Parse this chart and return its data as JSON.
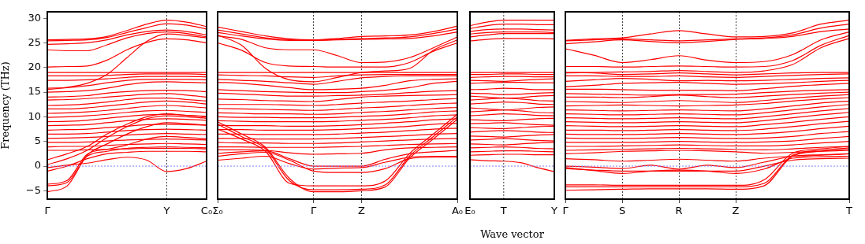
{
  "chart_data": [
    {
      "type": "line",
      "ylabel": "Frequency (THz)",
      "categories": [
        "Γ",
        null,
        null,
        null,
        null,
        null,
        "Y",
        null,
        "C₀"
      ],
      "ylim": [
        -6.7,
        31.3
      ],
      "yticks": [
        {
          "value": -5,
          "label": "−5"
        },
        0,
        5,
        10,
        15,
        20,
        25,
        30
      ],
      "legend": false,
      "marker": "none",
      "line_style": "solid",
      "ref_lines": [
        {
          "axis": "y",
          "value": 0,
          "color": "#7f7fff",
          "line_style": "dotted"
        },
        {
          "axis": "x",
          "value": "Y",
          "color": "#444444",
          "line_style": "dotted"
        }
      ],
      "series": [
        {
          "color": "#ff0000",
          "values": [
            25.6,
            25.7,
            25.8,
            26.3,
            27.5,
            28.8,
            29.6,
            29.2,
            28.3
          ]
        },
        {
          "color": "#ff0000",
          "values": [
            25.4,
            25.5,
            25.6,
            26.1,
            27.1,
            28.1,
            28.9,
            28.6,
            27.8
          ]
        },
        {
          "color": "#ff0000",
          "values": [
            24.7,
            24.8,
            25.0,
            25.6,
            26.6,
            27.3,
            27.6,
            27.3,
            26.6
          ]
        },
        {
          "color": "#ff0000",
          "values": [
            23.6,
            23.4,
            23.4,
            24.6,
            26.0,
            26.9,
            27.2,
            26.9,
            26.2
          ]
        },
        {
          "color": "#ff0000",
          "values": [
            20.1,
            20.2,
            20.3,
            21.5,
            23.6,
            25.1,
            25.8,
            25.6,
            25.0
          ]
        },
        {
          "color": "#ff0000",
          "values": [
            15.5,
            16.0,
            16.8,
            18.6,
            22.0,
            25.3,
            26.8,
            26.5,
            26.0
          ]
        },
        {
          "color": "#ff0000",
          "values": [
            19.0,
            19.0,
            19.0,
            19.0,
            19.0,
            19.0,
            19.0,
            19.0,
            19.0
          ]
        },
        {
          "color": "#ff0000",
          "values": [
            18.3,
            18.3,
            18.3,
            18.4,
            18.6,
            18.7,
            18.7,
            18.7,
            18.6
          ]
        },
        {
          "color": "#ff0000",
          "values": [
            17.4,
            17.4,
            17.5,
            17.7,
            18.0,
            18.2,
            18.2,
            18.2,
            18.1
          ]
        },
        {
          "color": "#ff0000",
          "values": [
            15.8,
            15.9,
            16.3,
            16.9,
            17.4,
            17.6,
            17.6,
            17.6,
            17.5
          ]
        },
        {
          "color": "#ff0000",
          "values": [
            15.0,
            15.1,
            15.3,
            15.8,
            16.5,
            17.0,
            17.1,
            17.0,
            16.9
          ]
        },
        {
          "color": "#ff0000",
          "values": [
            14.0,
            14.1,
            14.3,
            14.8,
            15.1,
            15.3,
            15.4,
            15.3,
            15.1
          ]
        },
        {
          "color": "#ff0000",
          "values": [
            13.4,
            13.5,
            13.7,
            14.0,
            14.3,
            14.6,
            14.7,
            14.4,
            14.0
          ]
        },
        {
          "color": "#ff0000",
          "values": [
            12.3,
            12.4,
            12.6,
            13.0,
            13.5,
            13.8,
            13.8,
            13.5,
            13.2
          ]
        },
        {
          "color": "#ff0000",
          "values": [
            11.6,
            11.6,
            11.8,
            12.2,
            12.6,
            13.0,
            13.2,
            13.0,
            12.6
          ]
        },
        {
          "color": "#ff0000",
          "values": [
            10.7,
            10.8,
            11.0,
            11.3,
            11.7,
            12.1,
            12.3,
            12.1,
            11.8
          ]
        },
        {
          "color": "#ff0000",
          "values": [
            9.9,
            10.0,
            10.2,
            10.5,
            10.9,
            11.2,
            11.3,
            11.1,
            10.9
          ]
        },
        {
          "color": "#ff0000",
          "values": [
            9.0,
            9.1,
            9.3,
            9.7,
            10.1,
            10.4,
            10.5,
            10.3,
            10.1
          ]
        },
        {
          "color": "#ff0000",
          "values": [
            8.2,
            8.3,
            8.4,
            8.8,
            9.2,
            9.5,
            9.6,
            9.5,
            9.3
          ]
        },
        {
          "color": "#ff0000",
          "values": [
            7.3,
            7.4,
            7.5,
            7.8,
            8.1,
            8.4,
            8.5,
            8.4,
            8.3
          ]
        },
        {
          "color": "#ff0000",
          "values": [
            6.5,
            6.5,
            6.6,
            6.9,
            7.2,
            7.4,
            7.5,
            7.4,
            7.3
          ]
        },
        {
          "color": "#ff0000",
          "values": [
            5.6,
            5.7,
            5.8,
            6.0,
            6.3,
            6.5,
            6.6,
            6.5,
            6.4
          ]
        },
        {
          "color": "#ff0000",
          "values": [
            4.8,
            4.8,
            4.9,
            5.1,
            5.3,
            5.4,
            5.5,
            5.4,
            5.3
          ]
        },
        {
          "color": "#ff0000",
          "values": [
            3.9,
            4.0,
            4.0,
            4.2,
            4.4,
            4.5,
            4.6,
            4.5,
            4.4
          ]
        },
        {
          "color": "#ff0000",
          "values": [
            3.2,
            3.2,
            3.3,
            3.4,
            3.5,
            3.6,
            3.6,
            3.6,
            3.5
          ]
        },
        {
          "color": "#ff0000",
          "values": [
            1.3,
            2.5,
            4.0,
            6.5,
            8.5,
            10.0,
            10.6,
            10.3,
            10.0
          ]
        },
        {
          "color": "#ff0000",
          "values": [
            0.3,
            1.5,
            3.2,
            5.8,
            8.0,
            9.6,
            10.2,
            10.0,
            9.7
          ]
        },
        {
          "color": "#ff0000",
          "values": [
            -4.0,
            -3.3,
            2.0,
            3.0,
            3.6,
            3.8,
            3.9,
            3.8,
            3.7
          ]
        },
        {
          "color": "#ff0000",
          "values": [
            -3.7,
            -2.9,
            2.4,
            3.4,
            4.3,
            5.5,
            6.0,
            5.8,
            5.5
          ]
        },
        {
          "color": "#ff0000",
          "values": [
            -5.2,
            -4.0,
            2.2,
            4.5,
            6.5,
            8.0,
            8.8,
            8.6,
            8.3
          ]
        },
        {
          "color": "#ff0000",
          "values": [
            -1.0,
            0.0,
            1.5,
            2.5,
            2.8,
            3.0,
            3.0,
            3.0,
            2.9
          ]
        },
        {
          "color": "#ff0000",
          "values": [
            -0.3,
            0.2,
            0.6,
            1.3,
            1.8,
            1.2,
            -1.1,
            -0.5,
            1.0
          ]
        }
      ]
    },
    {
      "type": "line",
      "categories": [
        "Σ₀",
        null,
        null,
        null,
        "Γ",
        null,
        "Z",
        null,
        null,
        null,
        "A₀"
      ],
      "ylim": [
        -6.7,
        31.3
      ],
      "tick_labels": "x",
      "grid": "x",
      "legend": false,
      "marker": "none",
      "line_style": "solid",
      "ref_lines": [
        {
          "axis": "y",
          "value": 0,
          "color": "#7f7fff",
          "line_style": "dotted"
        }
      ],
      "series": [
        {
          "color": "#ff0000",
          "values": [
            28.2,
            27.3,
            26.4,
            25.8,
            25.6,
            25.9,
            26.3,
            26.4,
            26.6,
            27.3,
            28.4
          ]
        },
        {
          "color": "#ff0000",
          "values": [
            27.6,
            26.8,
            26.0,
            25.6,
            25.5,
            25.7,
            25.9,
            26.0,
            26.2,
            26.9,
            27.8
          ]
        },
        {
          "color": "#ff0000",
          "values": [
            27.1,
            26.4,
            25.8,
            25.5,
            25.5,
            25.6,
            25.7,
            25.8,
            25.9,
            26.4,
            27.2
          ]
        },
        {
          "color": "#ff0000",
          "values": [
            26.4,
            25.7,
            24.0,
            23.6,
            23.6,
            22.4,
            21.0,
            21.1,
            22.0,
            24.0,
            26.2
          ]
        },
        {
          "color": "#ff0000",
          "values": [
            25.0,
            23.5,
            21.0,
            20.3,
            20.2,
            20.1,
            20.1,
            20.1,
            21.0,
            23.3,
            25.0
          ]
        },
        {
          "color": "#ff0000",
          "values": [
            26.6,
            24.5,
            19.8,
            17.5,
            17.1,
            18.0,
            19.0,
            19.3,
            19.8,
            23.5,
            25.6
          ]
        },
        {
          "color": "#ff0000",
          "values": [
            19.0,
            19.0,
            19.0,
            19.0,
            19.0,
            19.0,
            19.0,
            19.0,
            19.0,
            19.0,
            19.0
          ]
        },
        {
          "color": "#ff0000",
          "values": [
            18.5,
            18.4,
            18.3,
            18.1,
            18.0,
            18.3,
            18.5,
            18.6,
            18.6,
            18.6,
            18.6
          ]
        },
        {
          "color": "#ff0000",
          "values": [
            17.6,
            17.4,
            17.2,
            16.9,
            16.6,
            17.2,
            17.9,
            18.2,
            18.3,
            18.3,
            18.3
          ]
        },
        {
          "color": "#ff0000",
          "values": [
            17.0,
            16.8,
            16.4,
            15.9,
            15.5,
            15.6,
            15.8,
            16.4,
            17.3,
            17.6,
            17.7
          ]
        },
        {
          "color": "#ff0000",
          "values": [
            15.5,
            15.3,
            15.1,
            15.0,
            14.9,
            14.9,
            15.1,
            15.4,
            15.9,
            16.8,
            17.2
          ]
        },
        {
          "color": "#ff0000",
          "values": [
            14.8,
            14.6,
            14.4,
            14.2,
            14.2,
            14.3,
            14.4,
            14.6,
            14.9,
            15.2,
            15.3
          ]
        },
        {
          "color": "#ff0000",
          "values": [
            13.6,
            13.5,
            13.3,
            13.2,
            13.1,
            13.5,
            14.0,
            14.2,
            14.3,
            14.4,
            14.5
          ]
        },
        {
          "color": "#ff0000",
          "values": [
            12.5,
            12.5,
            12.5,
            12.4,
            12.3,
            12.5,
            12.8,
            13.0,
            13.2,
            13.5,
            13.7
          ]
        },
        {
          "color": "#ff0000",
          "values": [
            11.7,
            11.6,
            11.5,
            11.4,
            11.3,
            11.5,
            11.8,
            12.0,
            12.3,
            12.6,
            12.8
          ]
        },
        {
          "color": "#ff0000",
          "values": [
            10.8,
            10.7,
            10.6,
            10.6,
            10.5,
            10.6,
            10.9,
            11.1,
            11.4,
            11.7,
            11.9
          ]
        },
        {
          "color": "#ff0000",
          "values": [
            10.0,
            9.9,
            9.9,
            9.8,
            9.8,
            9.9,
            10.1,
            10.3,
            10.6,
            11.0,
            11.2
          ]
        },
        {
          "color": "#ff0000",
          "values": [
            9.2,
            9.1,
            9.0,
            9.0,
            9.0,
            9.1,
            9.3,
            9.5,
            9.8,
            10.2,
            10.4
          ]
        },
        {
          "color": "#ff0000",
          "values": [
            8.3,
            8.2,
            8.2,
            8.1,
            8.1,
            8.2,
            8.4,
            8.7,
            9.0,
            9.4,
            9.6
          ]
        },
        {
          "color": "#ff0000",
          "values": [
            7.4,
            7.4,
            7.3,
            7.3,
            7.3,
            7.4,
            7.6,
            7.8,
            8.1,
            8.5,
            8.7
          ]
        },
        {
          "color": "#ff0000",
          "values": [
            6.5,
            6.5,
            6.4,
            6.4,
            6.4,
            6.5,
            6.7,
            6.9,
            7.2,
            7.5,
            7.7
          ]
        },
        {
          "color": "#ff0000",
          "values": [
            5.6,
            5.6,
            5.5,
            5.5,
            5.5,
            5.6,
            5.8,
            6.0,
            6.2,
            6.5,
            6.6
          ]
        },
        {
          "color": "#ff0000",
          "values": [
            4.8,
            4.7,
            4.7,
            4.6,
            4.6,
            4.7,
            4.9,
            5.1,
            5.3,
            5.5,
            5.6
          ]
        },
        {
          "color": "#ff0000",
          "values": [
            3.9,
            3.9,
            3.8,
            3.8,
            3.8,
            3.9,
            4.0,
            4.2,
            4.4,
            4.5,
            4.6
          ]
        },
        {
          "color": "#ff0000",
          "values": [
            3.3,
            3.3,
            3.2,
            2.7,
            2.4,
            2.5,
            2.6,
            3.3,
            3.7,
            3.8,
            3.9
          ]
        },
        {
          "color": "#ff0000",
          "values": [
            7.5,
            5.5,
            3.0,
            -3.5,
            -4.0,
            -4.0,
            -4.0,
            -3.0,
            2.5,
            6.5,
            10.5
          ]
        },
        {
          "color": "#ff0000",
          "values": [
            8.5,
            6.0,
            3.5,
            -3.0,
            -4.8,
            -4.8,
            -4.7,
            -3.8,
            2.0,
            6.0,
            10.0
          ]
        },
        {
          "color": "#ff0000",
          "values": [
            9.0,
            6.5,
            3.8,
            -2.5,
            -5.2,
            -5.2,
            -5.0,
            -4.2,
            1.6,
            5.5,
            9.5
          ]
        },
        {
          "color": "#ff0000",
          "values": [
            1.2,
            1.6,
            2.0,
            0.5,
            -0.6,
            -0.4,
            -0.3,
            0.8,
            1.8,
            2.0,
            2.0
          ]
        },
        {
          "color": "#ff0000",
          "values": [
            2.0,
            2.5,
            2.8,
            1.2,
            -1.0,
            -1.3,
            -1.3,
            -0.5,
            1.5,
            1.8,
            1.8
          ]
        },
        {
          "color": "#ff0000",
          "values": [
            2.6,
            2.9,
            3.1,
            1.5,
            0.0,
            0.0,
            0.0,
            1.4,
            2.5,
            2.9,
            3.2
          ]
        }
      ]
    },
    {
      "type": "line",
      "xlabel": "Wave vector",
      "categories": [
        "E₀",
        null,
        "T",
        null,
        null,
        "Y"
      ],
      "ylim": [
        -6.7,
        31.3
      ],
      "tick_labels": "x",
      "legend": false,
      "marker": "none",
      "line_style": "solid",
      "ref_lines": [
        {
          "axis": "y",
          "value": 0,
          "color": "#7f7fff",
          "line_style": "dotted"
        },
        {
          "axis": "x",
          "value": "T",
          "color": "#444444",
          "line_style": "dotted"
        }
      ],
      "series": [
        {
          "color": "#ff0000",
          "values": [
            28.5,
            29.2,
            29.6,
            29.6,
            29.6,
            29.6
          ]
        },
        {
          "color": "#ff0000",
          "values": [
            27.9,
            28.5,
            28.8,
            28.8,
            28.7,
            28.7
          ]
        },
        {
          "color": "#ff0000",
          "values": [
            27.3,
            27.7,
            27.8,
            27.8,
            27.7,
            27.6
          ]
        },
        {
          "color": "#ff0000",
          "values": [
            26.8,
            27.1,
            27.2,
            27.2,
            27.2,
            27.1
          ]
        },
        {
          "color": "#ff0000",
          "values": [
            26.2,
            26.6,
            26.9,
            26.9,
            26.9,
            26.9
          ]
        },
        {
          "color": "#ff0000",
          "values": [
            25.4,
            25.7,
            25.9,
            25.9,
            25.9,
            25.8
          ]
        },
        {
          "color": "#ff0000",
          "values": [
            19.0,
            19.0,
            19.0,
            19.0,
            19.0,
            19.0
          ]
        },
        {
          "color": "#ff0000",
          "values": [
            18.6,
            18.6,
            18.7,
            18.7,
            18.6,
            18.6
          ]
        },
        {
          "color": "#ff0000",
          "values": [
            18.0,
            18.1,
            18.2,
            18.2,
            18.1,
            18.1
          ]
        },
        {
          "color": "#ff0000",
          "values": [
            17.4,
            17.3,
            17.2,
            17.4,
            17.6,
            17.7
          ]
        },
        {
          "color": "#ff0000",
          "values": [
            16.8,
            16.9,
            17.0,
            17.0,
            16.9,
            16.9
          ]
        },
        {
          "color": "#ff0000",
          "values": [
            15.5,
            15.6,
            15.8,
            15.7,
            15.5,
            15.5
          ]
        },
        {
          "color": "#ff0000",
          "values": [
            14.8,
            14.7,
            14.5,
            14.6,
            14.8,
            14.9
          ]
        },
        {
          "color": "#ff0000",
          "values": [
            14.2,
            14.0,
            13.8,
            13.9,
            14.2,
            14.3
          ]
        },
        {
          "color": "#ff0000",
          "values": [
            13.4,
            13.6,
            13.8,
            13.6,
            13.3,
            13.2
          ]
        },
        {
          "color": "#ff0000",
          "values": [
            12.6,
            12.8,
            13.0,
            12.9,
            12.6,
            12.5
          ]
        },
        {
          "color": "#ff0000",
          "values": [
            11.8,
            11.6,
            11.4,
            11.6,
            11.9,
            12.0
          ]
        },
        {
          "color": "#ff0000",
          "values": [
            11.0,
            11.2,
            11.4,
            11.2,
            10.9,
            10.8
          ]
        },
        {
          "color": "#ff0000",
          "values": [
            10.2,
            10.4,
            10.6,
            10.5,
            10.3,
            10.2
          ]
        },
        {
          "color": "#ff0000",
          "values": [
            9.4,
            9.3,
            9.2,
            9.4,
            9.6,
            9.7
          ]
        },
        {
          "color": "#ff0000",
          "values": [
            8.6,
            8.7,
            8.8,
            8.6,
            8.4,
            8.3
          ]
        },
        {
          "color": "#ff0000",
          "values": [
            7.8,
            7.7,
            7.6,
            7.8,
            8.0,
            8.1
          ]
        },
        {
          "color": "#ff0000",
          "values": [
            6.9,
            7.1,
            7.2,
            7.1,
            6.9,
            6.8
          ]
        },
        {
          "color": "#ff0000",
          "values": [
            6.1,
            6.0,
            5.9,
            6.1,
            6.3,
            6.4
          ]
        },
        {
          "color": "#ff0000",
          "values": [
            5.3,
            5.4,
            5.6,
            5.4,
            5.2,
            5.1
          ]
        },
        {
          "color": "#ff0000",
          "values": [
            4.5,
            4.4,
            4.3,
            4.5,
            4.7,
            4.8
          ]
        },
        {
          "color": "#ff0000",
          "values": [
            3.7,
            3.8,
            3.9,
            3.8,
            3.6,
            3.5
          ]
        },
        {
          "color": "#ff0000",
          "values": [
            2.9,
            3.0,
            3.1,
            3.1,
            3.0,
            2.9
          ]
        },
        {
          "color": "#ff0000",
          "values": [
            2.2,
            2.3,
            2.4,
            2.4,
            2.3,
            2.3
          ]
        },
        {
          "color": "#ff0000",
          "values": [
            1.3,
            1.1,
            1.0,
            0.7,
            -0.3,
            -1.1
          ]
        }
      ]
    },
    {
      "type": "line",
      "categories": [
        "Γ",
        null,
        "S",
        null,
        "R",
        null,
        "Z",
        null,
        null,
        null,
        "T"
      ],
      "ylim": [
        -6.7,
        31.3
      ],
      "tick_labels": "x",
      "grid": "x",
      "legend": false,
      "marker": "none",
      "line_style": "solid",
      "ref_lines": [
        {
          "axis": "y",
          "value": 0,
          "color": "#7f7fff",
          "line_style": "dotted"
        }
      ],
      "series": [
        {
          "color": "#ff0000",
          "values": [
            25.5,
            25.8,
            26.0,
            26.8,
            27.5,
            26.8,
            26.2,
            26.3,
            27.0,
            28.8,
            29.6
          ]
        },
        {
          "color": "#ff0000",
          "values": [
            25.4,
            25.6,
            25.8,
            25.6,
            25.4,
            25.6,
            25.8,
            26.0,
            26.6,
            28.0,
            28.8
          ]
        },
        {
          "color": "#ff0000",
          "values": [
            24.8,
            25.2,
            25.6,
            25.3,
            25.0,
            25.3,
            25.7,
            25.9,
            26.3,
            27.3,
            27.8
          ]
        },
        {
          "color": "#ff0000",
          "values": [
            23.8,
            22.5,
            21.0,
            21.6,
            22.4,
            21.5,
            21.0,
            21.2,
            22.6,
            25.6,
            27.2
          ]
        },
        {
          "color": "#ff0000",
          "values": [
            20.2,
            20.2,
            20.1,
            20.2,
            20.3,
            20.2,
            20.1,
            20.2,
            21.4,
            24.5,
            26.5
          ]
        },
        {
          "color": "#ff0000",
          "values": [
            18.9,
            19.0,
            19.1,
            19.2,
            19.4,
            19.2,
            19.0,
            19.3,
            20.6,
            24.0,
            25.9
          ]
        },
        {
          "color": "#ff0000",
          "values": [
            19.0,
            18.9,
            18.6,
            18.7,
            18.9,
            18.7,
            18.5,
            18.7,
            18.9,
            19.0,
            19.0
          ]
        },
        {
          "color": "#ff0000",
          "values": [
            18.3,
            18.3,
            18.2,
            18.2,
            18.3,
            18.1,
            18.0,
            18.2,
            18.4,
            18.6,
            18.7
          ]
        },
        {
          "color": "#ff0000",
          "values": [
            17.2,
            17.5,
            17.8,
            17.6,
            17.3,
            17.4,
            17.3,
            17.4,
            17.6,
            17.8,
            17.9
          ]
        },
        {
          "color": "#ff0000",
          "values": [
            16.1,
            16.4,
            16.8,
            16.9,
            17.0,
            16.8,
            16.6,
            16.7,
            16.9,
            17.2,
            17.4
          ]
        },
        {
          "color": "#ff0000",
          "values": [
            15.6,
            15.6,
            15.5,
            15.4,
            15.4,
            15.4,
            15.3,
            15.7,
            16.2,
            16.5,
            16.8
          ]
        },
        {
          "color": "#ff0000",
          "values": [
            14.7,
            14.6,
            14.5,
            14.4,
            14.5,
            14.5,
            14.6,
            14.9,
            15.2,
            15.4,
            15.5
          ]
        },
        {
          "color": "#ff0000",
          "values": [
            14.0,
            14.0,
            13.9,
            14.1,
            14.4,
            14.1,
            13.9,
            14.2,
            14.5,
            14.8,
            15.0
          ]
        },
        {
          "color": "#ff0000",
          "values": [
            13.1,
            13.0,
            12.9,
            13.1,
            13.3,
            13.1,
            12.9,
            13.3,
            13.8,
            14.2,
            14.5
          ]
        },
        {
          "color": "#ff0000",
          "values": [
            12.2,
            12.3,
            12.4,
            12.3,
            12.2,
            12.3,
            12.4,
            12.7,
            13.2,
            13.6,
            13.9
          ]
        },
        {
          "color": "#ff0000",
          "values": [
            11.4,
            11.3,
            11.2,
            11.3,
            11.4,
            11.3,
            11.2,
            11.6,
            12.2,
            12.8,
            13.2
          ]
        },
        {
          "color": "#ff0000",
          "values": [
            10.6,
            10.5,
            10.4,
            10.5,
            10.6,
            10.5,
            10.4,
            10.8,
            11.4,
            12.0,
            12.5
          ]
        },
        {
          "color": "#ff0000",
          "values": [
            9.8,
            9.7,
            9.6,
            9.7,
            9.8,
            9.7,
            9.6,
            10.0,
            10.6,
            11.2,
            11.7
          ]
        },
        {
          "color": "#ff0000",
          "values": [
            9.0,
            8.9,
            8.8,
            8.9,
            9.0,
            8.9,
            8.8,
            9.2,
            9.8,
            10.4,
            10.9
          ]
        },
        {
          "color": "#ff0000",
          "values": [
            8.2,
            8.1,
            8.0,
            8.1,
            8.2,
            8.1,
            8.0,
            8.4,
            8.9,
            9.5,
            10.0
          ]
        },
        {
          "color": "#ff0000",
          "values": [
            7.3,
            7.3,
            7.2,
            7.3,
            7.4,
            7.3,
            7.2,
            7.5,
            8.0,
            8.6,
            9.1
          ]
        },
        {
          "color": "#ff0000",
          "values": [
            6.5,
            6.4,
            6.4,
            6.5,
            6.6,
            6.5,
            6.4,
            6.6,
            7.0,
            7.6,
            8.1
          ]
        },
        {
          "color": "#ff0000",
          "values": [
            5.7,
            5.6,
            5.6,
            5.7,
            5.8,
            5.7,
            5.6,
            5.7,
            6.0,
            6.6,
            7.0
          ]
        },
        {
          "color": "#ff0000",
          "values": [
            4.8,
            4.8,
            4.8,
            4.9,
            5.0,
            4.9,
            4.8,
            4.9,
            5.1,
            5.6,
            6.0
          ]
        },
        {
          "color": "#ff0000",
          "values": [
            4.0,
            4.0,
            4.1,
            4.2,
            4.3,
            4.2,
            4.1,
            4.1,
            4.3,
            4.7,
            5.0
          ]
        },
        {
          "color": "#ff0000",
          "values": [
            3.2,
            3.3,
            3.4,
            3.5,
            3.6,
            3.5,
            3.4,
            3.3,
            3.5,
            3.8,
            4.0
          ]
        },
        {
          "color": "#ff0000",
          "values": [
            2.5,
            2.7,
            3.0,
            3.1,
            3.2,
            3.1,
            2.9,
            2.6,
            2.8,
            3.0,
            3.2
          ]
        },
        {
          "color": "#ff0000",
          "values": [
            1.5,
            1.3,
            1.0,
            1.2,
            1.4,
            1.2,
            1.0,
            1.6,
            2.0,
            2.2,
            2.5
          ]
        },
        {
          "color": "#ff0000",
          "values": [
            0.0,
            -0.2,
            -0.5,
            0.2,
            -0.6,
            0.2,
            -0.3,
            0.8,
            2.0,
            2.3,
            2.5
          ]
        },
        {
          "color": "#ff0000",
          "values": [
            -0.3,
            -0.9,
            -1.5,
            -1.0,
            -0.8,
            -1.0,
            -1.5,
            -0.6,
            1.6,
            1.9,
            2.0
          ]
        },
        {
          "color": "#ff0000",
          "values": [
            -0.5,
            -0.8,
            -1.0,
            -1.0,
            -1.0,
            -1.0,
            -1.0,
            0.0,
            1.2,
            1.5,
            1.6
          ]
        },
        {
          "color": "#ff0000",
          "values": [
            -3.8,
            -3.8,
            -3.9,
            -3.9,
            -3.9,
            -3.9,
            -3.9,
            -2.8,
            2.6,
            3.5,
            4.0
          ]
        },
        {
          "color": "#ff0000",
          "values": [
            -4.2,
            -4.2,
            -4.2,
            -4.2,
            -4.2,
            -4.2,
            -4.2,
            -3.5,
            2.2,
            3.2,
            3.7
          ]
        },
        {
          "color": "#ff0000",
          "values": [
            -4.9,
            -4.8,
            -4.7,
            -4.6,
            -4.6,
            -4.6,
            -4.7,
            -4.0,
            2.0,
            3.0,
            3.4
          ]
        }
      ]
    }
  ]
}
